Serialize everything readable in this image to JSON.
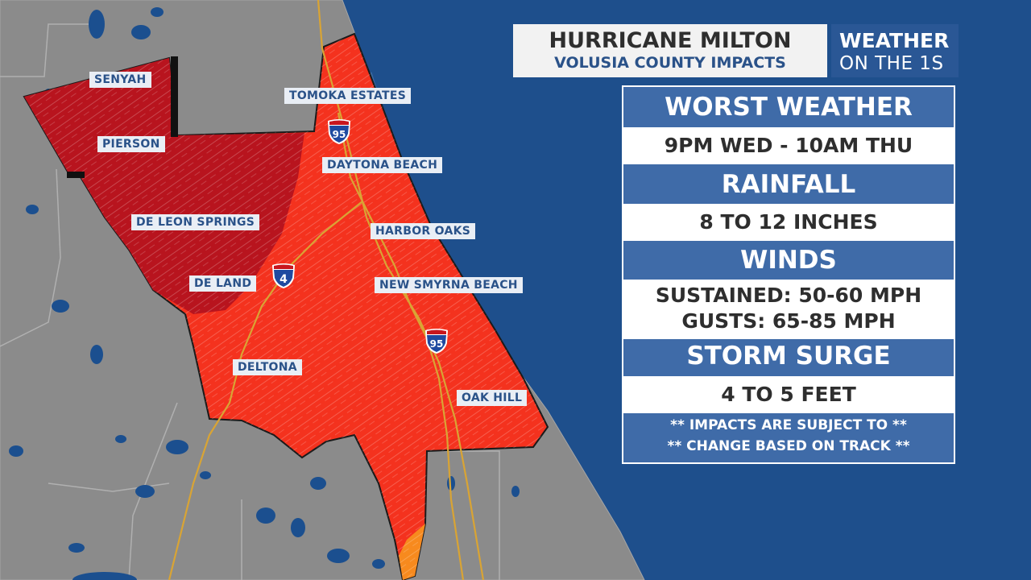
{
  "header": {
    "title": "HURRICANE MILTON",
    "subtitle": "VOLUSIA COUNTY IMPACTS"
  },
  "brand": {
    "line1": "WEATHER",
    "line2": "ON THE 1S"
  },
  "impacts": {
    "worst_weather": {
      "label": "WORST WEATHER",
      "value": "9PM WED - 10AM THU"
    },
    "rainfall": {
      "label": "RAINFALL",
      "value": "8 TO 12 INCHES"
    },
    "winds": {
      "label": "WINDS",
      "sustained": "SUSTAINED: 50-60 MPH",
      "gusts": "GUSTS: 65-85 MPH"
    },
    "storm_surge": {
      "label": "STORM SURGE",
      "value": "4 TO 5 FEET"
    },
    "note_line1": "** IMPACTS ARE SUBJECT TO **",
    "note_line2": "** CHANGE BASED ON TRACK **"
  },
  "map": {
    "cities": {
      "senyah": "SENYAH",
      "pierson": "PIERSON",
      "tomoka_estates": "TOMOKA ESTATES",
      "daytona_beach": "DAYTONA BEACH",
      "de_leon_springs": "DE LEON SPRINGS",
      "harbor_oaks": "HARBOR OAKS",
      "de_land": "DE LAND",
      "new_smyrna_beach": "NEW SMYRNA BEACH",
      "deltona": "DELTONA",
      "oak_hill": "OAK HILL"
    },
    "shields": {
      "i95_north": "95",
      "i4": "4",
      "i95_south": "95"
    },
    "colors": {
      "ocean": "#1e4f8c",
      "land": "#8b8b8b",
      "lakes": "#1b4f8f",
      "impact_high": "#f4321e",
      "impact_extreme": "#b8141e",
      "impact_moderate": "#f78a1e",
      "roads": "#d9a434",
      "panel_header": "#3f6ba8"
    }
  }
}
